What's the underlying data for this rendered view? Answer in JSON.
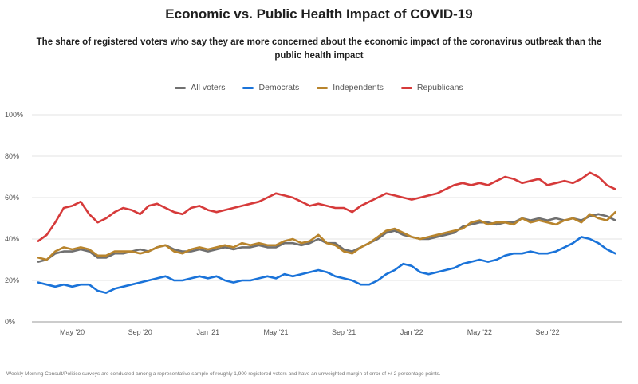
{
  "title": "Economic vs. Public Health Impact of COVID-19",
  "subtitle": "The share of registered voters who say they are more concerned about the economic impact of the coronavirus outbreak than the public health impact",
  "footnote": "Weekly Morning Consult/Politico surveys are conducted among a representative sample of roughly 1,900 registered voters and have an unweighted margin of error of +/-2 percentage points.",
  "chart_data": {
    "type": "line",
    "title": "Economic vs. Public Health Impact of COVID-19",
    "xlabel": "",
    "ylabel": "",
    "ylim": [
      0,
      100
    ],
    "y_ticks": [
      "0%",
      "20%",
      "40%",
      "60%",
      "80%",
      "100%"
    ],
    "x_tick_labels": [
      "May '20",
      "Sep '20",
      "Jan '21",
      "May '21",
      "Sep '21",
      "Jan '22",
      "May '22",
      "Sep '22"
    ],
    "x_tick_months": [
      2,
      6,
      10,
      14,
      18,
      22,
      26,
      30
    ],
    "xlim_months": [
      0,
      34.3
    ],
    "legend_position": "top-center",
    "series": [
      {
        "name": "All voters",
        "color": "#707070",
        "x": [
          0,
          0.5,
          1,
          1.5,
          2,
          2.5,
          3,
          3.5,
          4,
          4.5,
          5,
          5.5,
          6,
          6.5,
          7,
          7.5,
          8,
          8.5,
          9,
          9.5,
          10,
          10.5,
          11,
          11.5,
          12,
          12.5,
          13,
          13.5,
          14,
          14.5,
          15,
          15.5,
          16,
          16.5,
          17,
          17.5,
          18,
          18.5,
          19,
          19.5,
          20,
          20.5,
          21,
          21.5,
          22,
          22.5,
          23,
          23.5,
          24,
          24.5,
          25,
          25.5,
          26,
          26.5,
          27,
          27.5,
          28,
          28.5,
          29,
          29.5,
          30,
          30.5,
          31,
          31.5,
          32,
          32.5,
          33,
          33.5,
          34
        ],
        "values": [
          29,
          30,
          33,
          34,
          34,
          35,
          34,
          31,
          31,
          33,
          33,
          34,
          35,
          34,
          36,
          37,
          35,
          34,
          34,
          35,
          34,
          35,
          36,
          35,
          36,
          36,
          37,
          36,
          36,
          38,
          38,
          37,
          38,
          40,
          38,
          38,
          35,
          34,
          36,
          38,
          40,
          43,
          44,
          42,
          41,
          40,
          40,
          41,
          42,
          43,
          46,
          47,
          48,
          48,
          47,
          48,
          48,
          50,
          49,
          50,
          49,
          50,
          49,
          50,
          49,
          51,
          52,
          51,
          49
        ]
      },
      {
        "name": "Democrats",
        "color": "#1a73d9",
        "x": [
          0,
          0.5,
          1,
          1.5,
          2,
          2.5,
          3,
          3.5,
          4,
          4.5,
          5,
          5.5,
          6,
          6.5,
          7,
          7.5,
          8,
          8.5,
          9,
          9.5,
          10,
          10.5,
          11,
          11.5,
          12,
          12.5,
          13,
          13.5,
          14,
          14.5,
          15,
          15.5,
          16,
          16.5,
          17,
          17.5,
          18,
          18.5,
          19,
          19.5,
          20,
          20.5,
          21,
          21.5,
          22,
          22.5,
          23,
          23.5,
          24,
          24.5,
          25,
          25.5,
          26,
          26.5,
          27,
          27.5,
          28,
          28.5,
          29,
          29.5,
          30,
          30.5,
          31,
          31.5,
          32,
          32.5,
          33,
          33.5,
          34
        ],
        "values": [
          19,
          18,
          17,
          18,
          17,
          18,
          18,
          15,
          14,
          16,
          17,
          18,
          19,
          20,
          21,
          22,
          20,
          20,
          21,
          22,
          21,
          22,
          20,
          19,
          20,
          20,
          21,
          22,
          21,
          23,
          22,
          23,
          24,
          25,
          24,
          22,
          21,
          20,
          18,
          18,
          20,
          23,
          25,
          28,
          27,
          24,
          23,
          24,
          25,
          26,
          28,
          29,
          30,
          29,
          30,
          32,
          33,
          33,
          34,
          33,
          33,
          34,
          36,
          38,
          41,
          40,
          38,
          35,
          33
        ]
      },
      {
        "name": "Independents",
        "color": "#b8842c",
        "x": [
          0,
          0.5,
          1,
          1.5,
          2,
          2.5,
          3,
          3.5,
          4,
          4.5,
          5,
          5.5,
          6,
          6.5,
          7,
          7.5,
          8,
          8.5,
          9,
          9.5,
          10,
          10.5,
          11,
          11.5,
          12,
          12.5,
          13,
          13.5,
          14,
          14.5,
          15,
          15.5,
          16,
          16.5,
          17,
          17.5,
          18,
          18.5,
          19,
          19.5,
          20,
          20.5,
          21,
          21.5,
          22,
          22.5,
          23,
          23.5,
          24,
          24.5,
          25,
          25.5,
          26,
          26.5,
          27,
          27.5,
          28,
          28.5,
          29,
          29.5,
          30,
          30.5,
          31,
          31.5,
          32,
          32.5,
          33,
          33.5,
          34
        ],
        "values": [
          31,
          30,
          34,
          36,
          35,
          36,
          35,
          32,
          32,
          34,
          34,
          34,
          33,
          34,
          36,
          37,
          34,
          33,
          35,
          36,
          35,
          36,
          37,
          36,
          38,
          37,
          38,
          37,
          37,
          39,
          40,
          38,
          39,
          42,
          38,
          37,
          34,
          33,
          36,
          38,
          41,
          44,
          45,
          43,
          41,
          40,
          41,
          42,
          43,
          44,
          45,
          48,
          49,
          47,
          48,
          48,
          47,
          50,
          48,
          49,
          48,
          47,
          49,
          50,
          48,
          52,
          50,
          49,
          53
        ]
      },
      {
        "name": "Republicans",
        "color": "#d63a3a",
        "x": [
          0,
          0.5,
          1,
          1.5,
          2,
          2.5,
          3,
          3.5,
          4,
          4.5,
          5,
          5.5,
          6,
          6.5,
          7,
          7.5,
          8,
          8.5,
          9,
          9.5,
          10,
          10.5,
          11,
          11.5,
          12,
          12.5,
          13,
          13.5,
          14,
          14.5,
          15,
          15.5,
          16,
          16.5,
          17,
          17.5,
          18,
          18.5,
          19,
          19.5,
          20,
          20.5,
          21,
          21.5,
          22,
          22.5,
          23,
          23.5,
          24,
          24.5,
          25,
          25.5,
          26,
          26.5,
          27,
          27.5,
          28,
          28.5,
          29,
          29.5,
          30,
          30.5,
          31,
          31.5,
          32,
          32.5,
          33,
          33.5,
          34
        ],
        "values": [
          39,
          42,
          48,
          55,
          56,
          58,
          52,
          48,
          50,
          53,
          55,
          54,
          52,
          56,
          57,
          55,
          53,
          52,
          55,
          56,
          54,
          53,
          54,
          55,
          56,
          57,
          58,
          60,
          62,
          61,
          60,
          58,
          56,
          57,
          56,
          55,
          55,
          53,
          56,
          58,
          60,
          62,
          61,
          60,
          59,
          60,
          61,
          62,
          64,
          66,
          67,
          66,
          67,
          66,
          68,
          70,
          69,
          67,
          68,
          69,
          66,
          67,
          68,
          67,
          69,
          72,
          70,
          66,
          64
        ]
      }
    ]
  }
}
